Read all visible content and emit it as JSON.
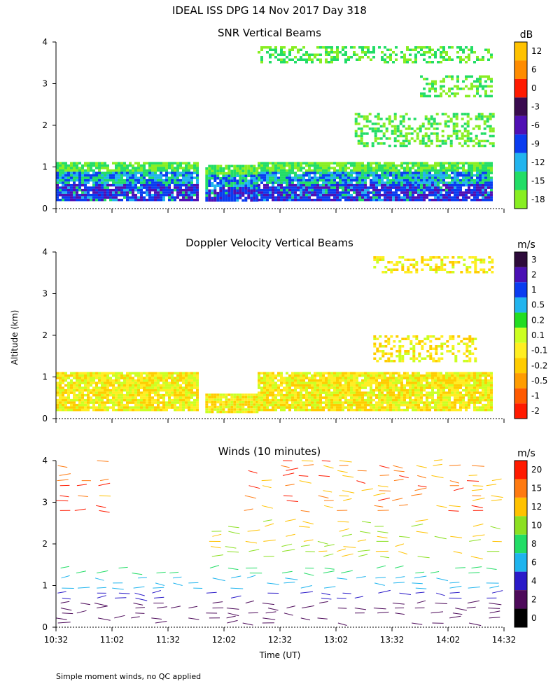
{
  "title": "IDEAL ISS DPG  14 Nov 2017 Day 318",
  "footnote": "Simple moment winds, no QC applied",
  "y_axis_label": "Altitude (km)",
  "x_axis_label": "Time (UT)",
  "x_tick_labels": [
    "10:32",
    "11:02",
    "11:32",
    "12:02",
    "12:32",
    "13:02",
    "13:32",
    "14:02",
    "14:32"
  ],
  "colors": {
    "snr_scale": [
      "#88ee22",
      "#22dd66",
      "#22b4ee",
      "#0a3cf0",
      "#5010b4",
      "#3a0b4f",
      "#ff1a00",
      "#ff8c00",
      "#ffc200"
    ],
    "velocity_scale": [
      "#ff1a00",
      "#ff5a00",
      "#ff9c00",
      "#ffcc00",
      "#ffee22",
      "#ccff22",
      "#22dd22",
      "#22b4ee",
      "#0a3cf0",
      "#4a10b4",
      "#2d0a3a"
    ],
    "wind_scale": [
      "#000000",
      "#4d0a5a",
      "#2a1ac8",
      "#1eb4ee",
      "#22dd66",
      "#8ce022",
      "#ffc200",
      "#ff7a10",
      "#ff1a00"
    ]
  },
  "chart_data": [
    {
      "type": "heatmap",
      "title": "SNR Vertical Beams",
      "ylabel": "Altitude (km)",
      "y_ticks": [
        0,
        1,
        2,
        3,
        4
      ],
      "ylim": [
        0,
        4
      ],
      "x_ticks": [
        "10:32",
        "11:02",
        "11:32",
        "12:02",
        "12:32",
        "13:02",
        "13:32",
        "14:02",
        "14:32"
      ],
      "colorbar": {
        "unit": "dB",
        "ticks": [
          12,
          6,
          0,
          -3,
          -6,
          -9,
          -12,
          -15,
          -18
        ]
      },
      "regions": [
        {
          "t0": 0.0,
          "t1": 76.0,
          "z0": 0.18,
          "z1": 1.12
        },
        {
          "t0": 80.0,
          "t1": 107.0,
          "z0": 0.18,
          "z1": 1.05
        },
        {
          "t0": 108.0,
          "t1": 234.0,
          "z0": 0.18,
          "z1": 1.12
        },
        {
          "t0": 160.0,
          "t1": 234.0,
          "z0": 1.5,
          "z1": 2.3
        },
        {
          "t0": 108.0,
          "t1": 234.0,
          "z0": 3.5,
          "z1": 3.9
        },
        {
          "t0": 195.0,
          "t1": 234.0,
          "z0": 2.7,
          "z1": 3.2
        }
      ]
    },
    {
      "type": "heatmap",
      "title": "Doppler Velocity Vertical Beams",
      "ylabel": "Altitude (km)",
      "y_ticks": [
        0,
        1,
        2,
        3,
        4
      ],
      "ylim": [
        0,
        4
      ],
      "x_ticks": [
        "10:32",
        "11:02",
        "11:32",
        "12:02",
        "12:32",
        "13:02",
        "13:32",
        "14:02",
        "14:32"
      ],
      "colorbar": {
        "unit": "m/s",
        "ticks": [
          3.0,
          2.0,
          1.0,
          0.5,
          0.2,
          0.1,
          -0.1,
          -0.2,
          -0.5,
          -1.0,
          -2.0
        ]
      },
      "regions": [
        {
          "t0": 0.0,
          "t1": 76.0,
          "z0": 0.18,
          "z1": 1.12
        },
        {
          "t0": 80.0,
          "t1": 107.0,
          "z0": 0.18,
          "z1": 0.6
        },
        {
          "t0": 108.0,
          "t1": 234.0,
          "z0": 0.18,
          "z1": 1.12
        },
        {
          "t0": 170.0,
          "t1": 225.0,
          "z0": 1.4,
          "z1": 2.0
        },
        {
          "t0": 170.0,
          "t1": 234.0,
          "z0": 3.5,
          "z1": 3.9
        }
      ]
    },
    {
      "type": "scatter",
      "title": "Winds (10 minutes)",
      "ylabel": "Altitude (km)",
      "xlabel": "Time (UT)",
      "y_ticks": [
        0,
        1,
        2,
        3,
        4
      ],
      "ylim": [
        0,
        4
      ],
      "x_ticks": [
        "10:32",
        "11:02",
        "11:32",
        "12:02",
        "12:32",
        "13:02",
        "13:32",
        "14:02",
        "14:32"
      ],
      "colorbar": {
        "unit": "m/s",
        "ticks": [
          20,
          15,
          12,
          10,
          8,
          6,
          4,
          2,
          0
        ]
      },
      "barb_times_min": [
        0,
        10,
        20,
        30,
        40,
        50,
        60,
        70,
        80,
        90,
        100,
        110,
        120,
        130,
        140,
        150,
        160,
        170,
        180,
        190,
        200,
        210,
        220,
        230
      ],
      "barb_layers_km": [
        {
          "z0": 0.1,
          "z1": 1.5
        },
        {
          "z0": 1.7,
          "z1": 2.6
        },
        {
          "z0": 2.8,
          "z1": 4.05
        }
      ]
    }
  ]
}
